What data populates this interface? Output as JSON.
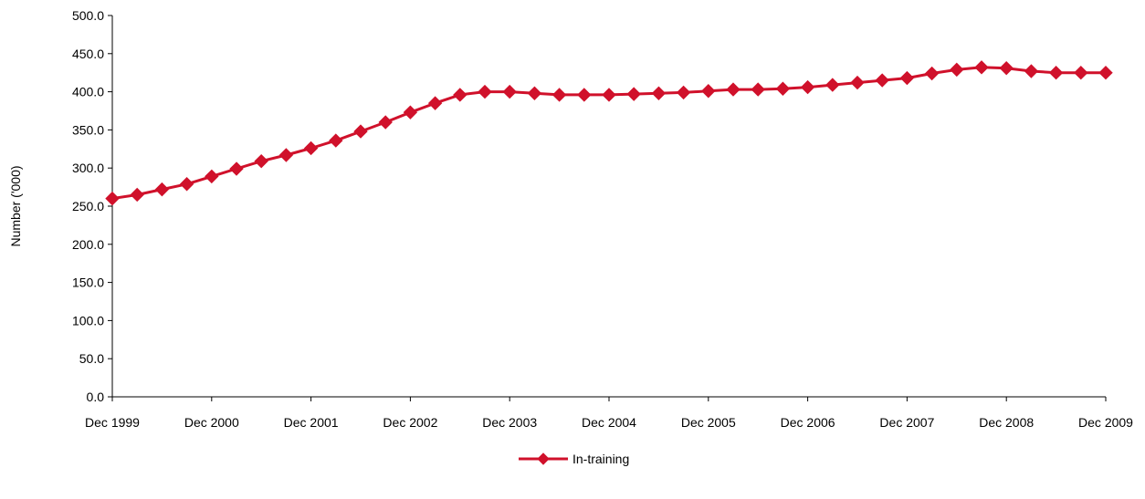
{
  "chart_data": {
    "type": "line",
    "title": "",
    "xlabel": "",
    "ylabel": "Number ('000)",
    "ylim": [
      0,
      500
    ],
    "y_ticks": [
      "0.0",
      "50.0",
      "100.0",
      "150.0",
      "200.0",
      "250.0",
      "300.0",
      "350.0",
      "400.0",
      "450.0",
      "500.0"
    ],
    "x_range": [
      "1999-12",
      "2009-12"
    ],
    "x_ticks": [
      "Dec 1999",
      "Dec 2000",
      "Dec 2001",
      "Dec 2002",
      "Dec 2003",
      "Dec 2004",
      "Dec 2005",
      "Dec 2006",
      "Dec 2007",
      "Dec 2008",
      "Dec 2009"
    ],
    "grid": false,
    "legend_position": "bottom-center",
    "x": [
      "1999-12",
      "2000-03",
      "2000-06",
      "2000-09",
      "2000-12",
      "2001-03",
      "2001-06",
      "2001-09",
      "2001-12",
      "2002-03",
      "2002-06",
      "2002-09",
      "2002-12",
      "2003-03",
      "2003-06",
      "2003-09",
      "2003-12",
      "2004-03",
      "2004-06",
      "2004-09",
      "2004-12",
      "2005-03",
      "2005-06",
      "2005-09",
      "2005-12",
      "2006-03",
      "2006-06",
      "2006-09",
      "2006-12",
      "2007-03",
      "2007-06",
      "2007-09",
      "2007-12",
      "2008-03",
      "2008-06",
      "2008-09",
      "2008-12",
      "2009-03",
      "2009-06",
      "2009-09",
      "2009-12"
    ],
    "series": [
      {
        "name": "In-training",
        "color": "#d0112b",
        "marker": "diamond",
        "values": [
          260.0,
          265.0,
          272.0,
          279.0,
          289.0,
          299.0,
          309.0,
          317.0,
          326.0,
          336.0,
          348.0,
          360.0,
          373.0,
          385.0,
          396.0,
          400.0,
          400.0,
          398.0,
          396.0,
          396.0,
          396.0,
          397.0,
          398.0,
          399.0,
          401.0,
          403.0,
          403.0,
          404.0,
          406.0,
          409.0,
          412.0,
          415.0,
          418.0,
          424.0,
          429.0,
          432.0,
          431.0,
          427.0,
          425.0,
          425.0,
          425.0
        ]
      }
    ]
  }
}
